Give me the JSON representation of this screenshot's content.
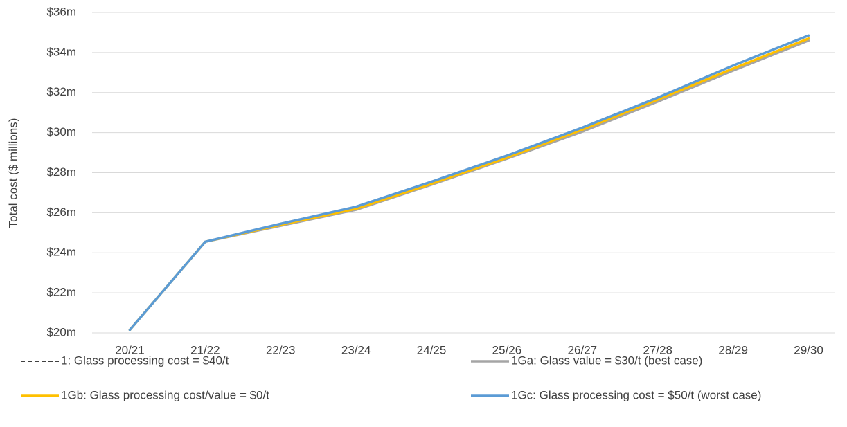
{
  "chart_data": {
    "type": "line",
    "y_label": "Total cost ($ millions)",
    "categories": [
      "20/21",
      "21/22",
      "22/23",
      "23/24",
      "24/25",
      "25/26",
      "26/27",
      "27/28",
      "28/29",
      "29/30"
    ],
    "series": [
      {
        "name": "1: Glass processing cost = $40/t",
        "color": "#000000",
        "dash": true,
        "values": [
          20.15,
          24.55,
          25.4,
          26.2,
          27.45,
          28.75,
          30.15,
          31.6,
          33.2,
          34.7
        ]
      },
      {
        "name": "1Ga: Glass value = $30/t (best case)",
        "color": "#a5a5a5",
        "values": [
          20.15,
          24.55,
          25.35,
          26.15,
          27.4,
          28.7,
          30.05,
          31.55,
          33.1,
          34.6
        ]
      },
      {
        "name": "1Gb: Glass processing cost/value = $0/t",
        "color": "#ffc000",
        "values": [
          20.15,
          24.55,
          25.4,
          26.2,
          27.45,
          28.75,
          30.15,
          31.65,
          33.2,
          34.7
        ]
      },
      {
        "name": "1Gc: Glass processing cost = $50/t (worst case)",
        "color": "#5b9bd5",
        "values": [
          20.15,
          24.55,
          25.45,
          26.3,
          27.55,
          28.85,
          30.25,
          31.75,
          33.35,
          34.85
        ]
      }
    ],
    "ylim": [
      20,
      36
    ],
    "yticks": [
      {
        "value": 20,
        "label": "$20m"
      },
      {
        "value": 22,
        "label": "$22m"
      },
      {
        "value": 24,
        "label": "$24m"
      },
      {
        "value": 26,
        "label": "$26m"
      },
      {
        "value": 28,
        "label": "$28m"
      },
      {
        "value": 30,
        "label": "$30m"
      },
      {
        "value": 32,
        "label": "$32m"
      },
      {
        "value": 34,
        "label": "$34m"
      },
      {
        "value": 36,
        "label": "$36m"
      }
    ],
    "grid": true,
    "legend": "bottom"
  }
}
